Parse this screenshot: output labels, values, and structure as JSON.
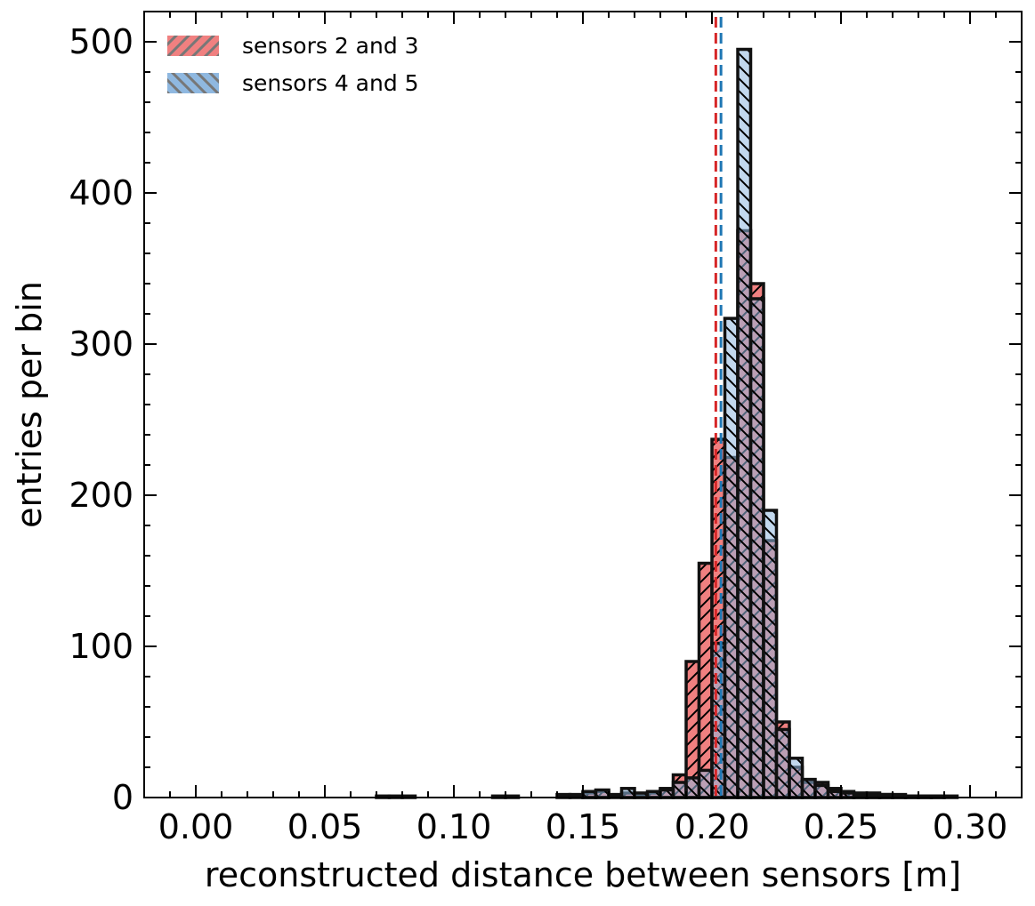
{
  "chart_data": {
    "type": "bar",
    "title": "",
    "xlabel": "reconstructed distance between sensors [m]",
    "ylabel": "entries per bin",
    "xlim": [
      -0.02,
      0.32
    ],
    "ylim": [
      0,
      520
    ],
    "x_ticks": [
      0.0,
      0.05,
      0.1,
      0.15,
      0.2,
      0.25,
      0.3
    ],
    "x_tick_labels": [
      "0.00",
      "0.05",
      "0.10",
      "0.15",
      "0.20",
      "0.25",
      "0.30"
    ],
    "y_ticks": [
      0,
      100,
      200,
      300,
      400,
      500
    ],
    "y_tick_labels": [
      "0",
      "100",
      "200",
      "300",
      "400",
      "500"
    ],
    "bin_width": 0.005,
    "grid": false,
    "legend_position": "top-left",
    "series": [
      {
        "name": "sensors 2 and 3",
        "color": "#f08080",
        "hatch": "forward",
        "reference_line": 0.2015,
        "reference_color": "#d62728",
        "bins": [
          [
            0.07,
            1
          ],
          [
            0.08,
            1
          ],
          [
            0.115,
            1
          ],
          [
            0.14,
            2
          ],
          [
            0.15,
            3
          ],
          [
            0.155,
            4
          ],
          [
            0.165,
            3
          ],
          [
            0.17,
            2
          ],
          [
            0.175,
            3
          ],
          [
            0.18,
            6
          ],
          [
            0.185,
            15
          ],
          [
            0.19,
            90
          ],
          [
            0.195,
            155
          ],
          [
            0.2,
            237
          ],
          [
            0.205,
            225
          ],
          [
            0.21,
            375
          ],
          [
            0.215,
            340
          ],
          [
            0.22,
            170
          ],
          [
            0.225,
            50
          ],
          [
            0.23,
            20
          ],
          [
            0.235,
            10
          ],
          [
            0.24,
            10
          ],
          [
            0.245,
            6
          ],
          [
            0.25,
            4
          ],
          [
            0.255,
            3
          ],
          [
            0.26,
            3
          ],
          [
            0.265,
            2
          ],
          [
            0.27,
            2
          ],
          [
            0.275,
            1
          ],
          [
            0.28,
            1
          ],
          [
            0.285,
            1
          ],
          [
            0.29,
            1
          ]
        ]
      },
      {
        "name": "sensors 4 and 5",
        "color": "#8fb8e0",
        "hatch": "backward",
        "reference_line": 0.2035,
        "reference_color": "#1f77b4",
        "bins": [
          [
            0.075,
            1
          ],
          [
            0.12,
            1
          ],
          [
            0.145,
            2
          ],
          [
            0.15,
            4
          ],
          [
            0.155,
            5
          ],
          [
            0.16,
            2
          ],
          [
            0.165,
            6
          ],
          [
            0.17,
            3
          ],
          [
            0.175,
            4
          ],
          [
            0.18,
            5
          ],
          [
            0.185,
            10
          ],
          [
            0.19,
            13
          ],
          [
            0.195,
            18
          ],
          [
            0.2,
            102
          ],
          [
            0.205,
            317
          ],
          [
            0.21,
            495
          ],
          [
            0.215,
            330
          ],
          [
            0.22,
            190
          ],
          [
            0.225,
            45
          ],
          [
            0.23,
            26
          ],
          [
            0.235,
            12
          ],
          [
            0.24,
            8
          ],
          [
            0.245,
            4
          ],
          [
            0.25,
            3
          ],
          [
            0.255,
            2
          ],
          [
            0.26,
            2
          ],
          [
            0.265,
            2
          ],
          [
            0.27,
            1
          ],
          [
            0.275,
            1
          ],
          [
            0.28,
            1
          ],
          [
            0.285,
            1
          ]
        ]
      }
    ]
  }
}
